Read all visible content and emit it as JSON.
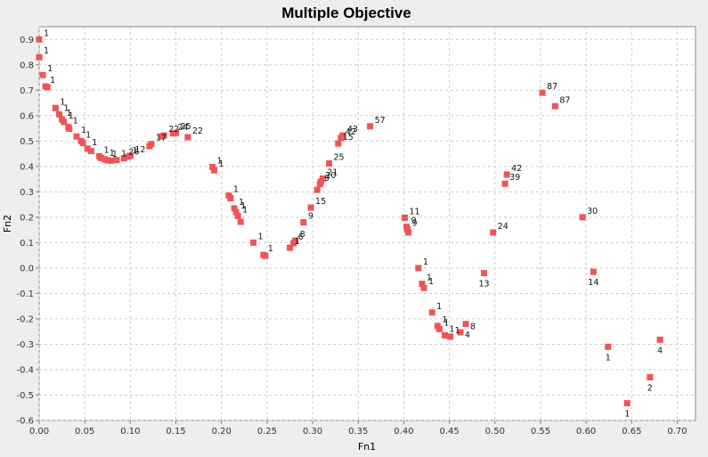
{
  "chart_data": {
    "type": "scatter",
    "title": "Multiple Objective",
    "xlabel": "Fn1",
    "ylabel": "Fn2",
    "xlim": [
      0.0,
      0.72
    ],
    "ylim": [
      -0.6,
      0.95
    ],
    "grid": true,
    "legend": "none",
    "x_ticks": [
      "0.00",
      "0.05",
      "0.10",
      "0.15",
      "0.20",
      "0.25",
      "0.30",
      "0.35",
      "0.40",
      "0.45",
      "0.50",
      "0.55",
      "0.60",
      "0.65",
      "0.70"
    ],
    "y_ticks": [
      "-0.6",
      "-0.5",
      "-0.4",
      "-0.3",
      "-0.2",
      "-0.1",
      "0.0",
      "0.1",
      "0.2",
      "0.3",
      "0.4",
      "0.5",
      "0.6",
      "0.7",
      "0.8",
      "0.9"
    ],
    "colors": {
      "marker": "#ee5555",
      "grid": "#cccccc",
      "plot_bg": "#ffffff",
      "page_bg": "#eeeeee"
    },
    "points": [
      {
        "x": 0.0,
        "y": 0.9,
        "label": "1",
        "pos": "ur"
      },
      {
        "x": 0.0,
        "y": 0.83,
        "label": "1",
        "pos": "ur"
      },
      {
        "x": 0.004,
        "y": 0.76,
        "label": "1",
        "pos": "ur"
      },
      {
        "x": 0.007,
        "y": 0.715,
        "label": "1",
        "pos": "ur"
      },
      {
        "x": 0.009,
        "y": 0.712,
        "label": "",
        "pos": "ur"
      },
      {
        "x": 0.018,
        "y": 0.63,
        "label": "1",
        "pos": "ur"
      },
      {
        "x": 0.022,
        "y": 0.605,
        "label": "1",
        "pos": "ur"
      },
      {
        "x": 0.025,
        "y": 0.585,
        "label": "1",
        "pos": "ur"
      },
      {
        "x": 0.027,
        "y": 0.575,
        "label": "1",
        "pos": "ur"
      },
      {
        "x": 0.032,
        "y": 0.555,
        "label": "1",
        "pos": "ur"
      },
      {
        "x": 0.033,
        "y": 0.548,
        "label": "",
        "pos": "ur"
      },
      {
        "x": 0.041,
        "y": 0.518,
        "label": "1",
        "pos": "ur"
      },
      {
        "x": 0.046,
        "y": 0.5,
        "label": "1",
        "pos": "ur"
      },
      {
        "x": 0.048,
        "y": 0.492,
        "label": "",
        "pos": "ur"
      },
      {
        "x": 0.053,
        "y": 0.47,
        "label": "1",
        "pos": "ur"
      },
      {
        "x": 0.057,
        "y": 0.46,
        "label": "",
        "pos": "ur"
      },
      {
        "x": 0.066,
        "y": 0.44,
        "label": "1",
        "pos": "ur"
      },
      {
        "x": 0.068,
        "y": 0.433,
        "label": "",
        "pos": "ur"
      },
      {
        "x": 0.072,
        "y": 0.428,
        "label": "1",
        "pos": "ur"
      },
      {
        "x": 0.075,
        "y": 0.424,
        "label": "1",
        "pos": "ur"
      },
      {
        "x": 0.079,
        "y": 0.423,
        "label": "",
        "pos": "ur"
      },
      {
        "x": 0.085,
        "y": 0.425,
        "label": "1",
        "pos": "ur"
      },
      {
        "x": 0.093,
        "y": 0.432,
        "label": "26",
        "pos": "ur"
      },
      {
        "x": 0.097,
        "y": 0.438,
        "label": "1",
        "pos": "ur"
      },
      {
        "x": 0.1,
        "y": 0.442,
        "label": "12",
        "pos": "ur"
      },
      {
        "x": 0.121,
        "y": 0.48,
        "label": "",
        "pos": "ur"
      },
      {
        "x": 0.123,
        "y": 0.488,
        "label": "17",
        "pos": "ur"
      },
      {
        "x": 0.135,
        "y": 0.518,
        "label": "",
        "pos": "ur"
      },
      {
        "x": 0.137,
        "y": 0.522,
        "label": "22",
        "pos": "ur"
      },
      {
        "x": 0.147,
        "y": 0.53,
        "label": "24",
        "pos": "ur"
      },
      {
        "x": 0.15,
        "y": 0.532,
        "label": "25",
        "pos": "ur"
      },
      {
        "x": 0.163,
        "y": 0.515,
        "label": "22",
        "pos": "ur"
      },
      {
        "x": 0.19,
        "y": 0.398,
        "label": "1",
        "pos": "ur"
      },
      {
        "x": 0.192,
        "y": 0.385,
        "label": "1",
        "pos": "ur"
      },
      {
        "x": 0.208,
        "y": 0.285,
        "label": "1",
        "pos": "ur"
      },
      {
        "x": 0.21,
        "y": 0.275,
        "label": "",
        "pos": "ur"
      },
      {
        "x": 0.214,
        "y": 0.235,
        "label": "1",
        "pos": "ur"
      },
      {
        "x": 0.216,
        "y": 0.22,
        "label": "1",
        "pos": "ur"
      },
      {
        "x": 0.218,
        "y": 0.205,
        "label": "1",
        "pos": "ur"
      },
      {
        "x": 0.221,
        "y": 0.182,
        "label": "",
        "pos": "ur"
      },
      {
        "x": 0.235,
        "y": 0.1,
        "label": "1",
        "pos": "ur"
      },
      {
        "x": 0.246,
        "y": 0.052,
        "label": "1",
        "pos": "ur"
      },
      {
        "x": 0.248,
        "y": 0.048,
        "label": "",
        "pos": "ur"
      },
      {
        "x": 0.275,
        "y": 0.08,
        "label": "1",
        "pos": "ur"
      },
      {
        "x": 0.279,
        "y": 0.098,
        "label": "6",
        "pos": "ur"
      },
      {
        "x": 0.281,
        "y": 0.108,
        "label": "8",
        "pos": "ur"
      },
      {
        "x": 0.29,
        "y": 0.18,
        "label": "9",
        "pos": "ur"
      },
      {
        "x": 0.298,
        "y": 0.238,
        "label": "15",
        "pos": "ur"
      },
      {
        "x": 0.305,
        "y": 0.308,
        "label": "",
        "pos": "ur"
      },
      {
        "x": 0.308,
        "y": 0.33,
        "label": "9",
        "pos": "ur"
      },
      {
        "x": 0.309,
        "y": 0.34,
        "label": "20",
        "pos": "ur"
      },
      {
        "x": 0.311,
        "y": 0.352,
        "label": "21",
        "pos": "ur"
      },
      {
        "x": 0.318,
        "y": 0.412,
        "label": "25",
        "pos": "ur"
      },
      {
        "x": 0.328,
        "y": 0.49,
        "label": "15",
        "pos": "ur"
      },
      {
        "x": 0.331,
        "y": 0.512,
        "label": "42",
        "pos": "ur"
      },
      {
        "x": 0.333,
        "y": 0.522,
        "label": "43",
        "pos": "ur"
      },
      {
        "x": 0.363,
        "y": 0.558,
        "label": "57",
        "pos": "ur"
      },
      {
        "x": 0.401,
        "y": 0.198,
        "label": "11",
        "pos": "ur"
      },
      {
        "x": 0.403,
        "y": 0.162,
        "label": "9",
        "pos": "ur"
      },
      {
        "x": 0.404,
        "y": 0.152,
        "label": "9",
        "pos": "ur"
      },
      {
        "x": 0.405,
        "y": 0.14,
        "label": "",
        "pos": "ur"
      },
      {
        "x": 0.416,
        "y": 0.0,
        "label": "1",
        "pos": "ur"
      },
      {
        "x": 0.42,
        "y": -0.062,
        "label": "1",
        "pos": "ur"
      },
      {
        "x": 0.422,
        "y": -0.078,
        "label": "1",
        "pos": "ur"
      },
      {
        "x": 0.431,
        "y": -0.175,
        "label": "1",
        "pos": "ur"
      },
      {
        "x": 0.437,
        "y": -0.228,
        "label": "1",
        "pos": "ur"
      },
      {
        "x": 0.439,
        "y": -0.24,
        "label": "1",
        "pos": "ur"
      },
      {
        "x": 0.445,
        "y": -0.265,
        "label": "1",
        "pos": "ur"
      },
      {
        "x": 0.451,
        "y": -0.27,
        "label": "1",
        "pos": "ur"
      },
      {
        "x": 0.462,
        "y": -0.253,
        "label": "4",
        "pos": "br"
      },
      {
        "x": 0.468,
        "y": -0.22,
        "label": "8",
        "pos": "br"
      },
      {
        "x": 0.488,
        "y": -0.02,
        "label": "13",
        "pos": "b"
      },
      {
        "x": 0.498,
        "y": 0.14,
        "label": "24",
        "pos": "ur"
      },
      {
        "x": 0.511,
        "y": 0.332,
        "label": "39",
        "pos": "ur"
      },
      {
        "x": 0.513,
        "y": 0.368,
        "label": "42",
        "pos": "ur"
      },
      {
        "x": 0.552,
        "y": 0.69,
        "label": "87",
        "pos": "ur"
      },
      {
        "x": 0.566,
        "y": 0.637,
        "label": "87",
        "pos": "ur"
      },
      {
        "x": 0.596,
        "y": 0.2,
        "label": "30",
        "pos": "ur"
      },
      {
        "x": 0.608,
        "y": -0.015,
        "label": "14",
        "pos": "b"
      },
      {
        "x": 0.624,
        "y": -0.31,
        "label": "1",
        "pos": "b"
      },
      {
        "x": 0.645,
        "y": -0.532,
        "label": "1",
        "pos": "b"
      },
      {
        "x": 0.67,
        "y": -0.43,
        "label": "2",
        "pos": "b"
      },
      {
        "x": 0.681,
        "y": -0.282,
        "label": "4",
        "pos": "b"
      }
    ]
  }
}
